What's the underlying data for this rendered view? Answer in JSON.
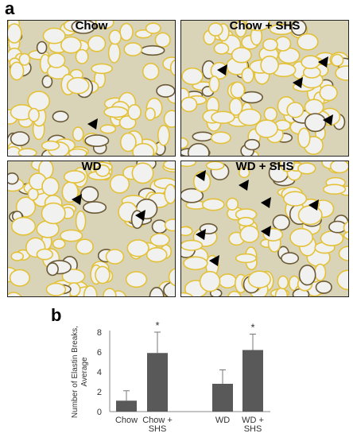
{
  "figure": {
    "panel_a_letter": "a",
    "panel_b_letter": "b",
    "panels": [
      {
        "title": "Chow"
      },
      {
        "title": "Chow + SHS"
      },
      {
        "title": "WD"
      },
      {
        "title": "WD + SHS"
      }
    ]
  },
  "chart_data": {
    "type": "bar",
    "title": "",
    "ylabel": "Number of Elastin Breaks, Average",
    "ylabel_lines": [
      "Number of Elastin Breaks,",
      "Average"
    ],
    "xlabel": "",
    "ylim": [
      0,
      8
    ],
    "yticks": [
      "0",
      "2",
      "4",
      "6",
      "8"
    ],
    "categories": [
      "Chow",
      "Chow + SHS",
      "WD",
      "WD + SHS"
    ],
    "category_lines": [
      [
        "Chow"
      ],
      [
        "Chow +",
        "SHS"
      ],
      [
        "WD"
      ],
      [
        "WD +",
        "SHS"
      ]
    ],
    "values": [
      1.1,
      5.9,
      2.8,
      6.2
    ],
    "error_upper": [
      1.0,
      2.1,
      1.4,
      1.6
    ],
    "significance": [
      "",
      "*",
      "",
      "*"
    ],
    "bar_color": "#595959",
    "grid": false
  }
}
